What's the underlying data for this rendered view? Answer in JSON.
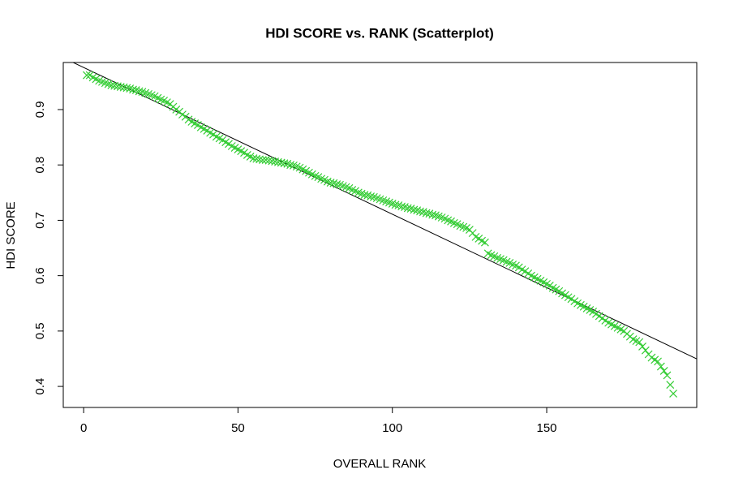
{
  "chart_data": {
    "type": "scatter",
    "title": "HDI SCORE vs. RANK (Scatterplot)",
    "x_label": "OVERALL RANK",
    "y_label": "HDI SCORE",
    "color": "#33cc33",
    "marker": "x",
    "grid": false,
    "xlim": [
      -6.6,
      198.6
    ],
    "ylim": [
      0.362,
      0.985
    ],
    "xticks": [
      0,
      50,
      100,
      150
    ],
    "yticks": [
      0.4,
      0.5,
      0.6,
      0.7,
      0.8,
      0.9
    ],
    "fit_line": {
      "intercept": 0.976,
      "slope": -0.00265,
      "color": "#000000"
    },
    "x": [
      1,
      2,
      3,
      4,
      5,
      6,
      7,
      8,
      9,
      10,
      11,
      12,
      13,
      14,
      15,
      16,
      17,
      18,
      19,
      20,
      21,
      22,
      23,
      24,
      25,
      26,
      27,
      28,
      29,
      30,
      31,
      32,
      33,
      34,
      35,
      36,
      37,
      38,
      39,
      40,
      41,
      42,
      43,
      44,
      45,
      46,
      47,
      48,
      49,
      50,
      51,
      52,
      53,
      54,
      55,
      56,
      57,
      58,
      59,
      60,
      61,
      62,
      63,
      64,
      65,
      66,
      67,
      68,
      69,
      70,
      71,
      72,
      73,
      74,
      75,
      76,
      77,
      78,
      79,
      80,
      81,
      82,
      83,
      84,
      85,
      86,
      87,
      88,
      89,
      90,
      91,
      92,
      93,
      94,
      95,
      96,
      97,
      98,
      99,
      100,
      101,
      102,
      103,
      104,
      105,
      106,
      107,
      108,
      109,
      110,
      111,
      112,
      113,
      114,
      115,
      116,
      117,
      118,
      119,
      120,
      121,
      122,
      123,
      124,
      125,
      126,
      127,
      128,
      129,
      130,
      131,
      132,
      133,
      134,
      135,
      136,
      137,
      138,
      139,
      140,
      141,
      142,
      143,
      144,
      145,
      146,
      147,
      148,
      149,
      150,
      151,
      152,
      153,
      154,
      155,
      156,
      157,
      158,
      159,
      160,
      161,
      162,
      163,
      164,
      165,
      166,
      167,
      168,
      169,
      170,
      171,
      172,
      173,
      174,
      175,
      176,
      177,
      178,
      179,
      180,
      181,
      182,
      183,
      184,
      185,
      186,
      187,
      188,
      189,
      190,
      191
    ],
    "values": [
      0.962,
      0.962,
      0.958,
      0.955,
      0.952,
      0.95,
      0.948,
      0.946,
      0.944,
      0.943,
      0.942,
      0.941,
      0.94,
      0.939,
      0.938,
      0.936,
      0.935,
      0.933,
      0.932,
      0.93,
      0.928,
      0.926,
      0.924,
      0.921,
      0.918,
      0.916,
      0.913,
      0.91,
      0.905,
      0.9,
      0.896,
      0.891,
      0.887,
      0.882,
      0.878,
      0.875,
      0.872,
      0.868,
      0.865,
      0.862,
      0.858,
      0.855,
      0.851,
      0.848,
      0.845,
      0.841,
      0.838,
      0.834,
      0.831,
      0.828,
      0.825,
      0.822,
      0.818,
      0.815,
      0.812,
      0.811,
      0.81,
      0.809,
      0.809,
      0.808,
      0.807,
      0.806,
      0.805,
      0.804,
      0.803,
      0.802,
      0.8,
      0.799,
      0.797,
      0.795,
      0.792,
      0.789,
      0.786,
      0.783,
      0.78,
      0.778,
      0.775,
      0.773,
      0.77,
      0.768,
      0.767,
      0.765,
      0.764,
      0.762,
      0.76,
      0.758,
      0.755,
      0.753,
      0.75,
      0.748,
      0.746,
      0.745,
      0.743,
      0.742,
      0.74,
      0.738,
      0.736,
      0.734,
      0.732,
      0.73,
      0.728,
      0.727,
      0.725,
      0.724,
      0.722,
      0.721,
      0.719,
      0.718,
      0.716,
      0.715,
      0.713,
      0.712,
      0.71,
      0.709,
      0.707,
      0.705,
      0.703,
      0.7,
      0.698,
      0.695,
      0.693,
      0.69,
      0.688,
      0.686,
      0.683,
      0.677,
      0.67,
      0.667,
      0.663,
      0.66,
      0.64,
      0.637,
      0.635,
      0.632,
      0.63,
      0.628,
      0.625,
      0.623,
      0.62,
      0.618,
      0.615,
      0.611,
      0.608,
      0.604,
      0.6,
      0.597,
      0.594,
      0.591,
      0.588,
      0.585,
      0.582,
      0.578,
      0.575,
      0.572,
      0.568,
      0.565,
      0.561,
      0.558,
      0.554,
      0.55,
      0.547,
      0.544,
      0.541,
      0.538,
      0.535,
      0.531,
      0.527,
      0.523,
      0.519,
      0.515,
      0.512,
      0.509,
      0.506,
      0.503,
      0.5,
      0.495,
      0.49,
      0.485,
      0.482,
      0.48,
      0.472,
      0.465,
      0.458,
      0.452,
      0.448,
      0.445,
      0.436,
      0.428,
      0.42,
      0.403,
      0.387
    ]
  }
}
